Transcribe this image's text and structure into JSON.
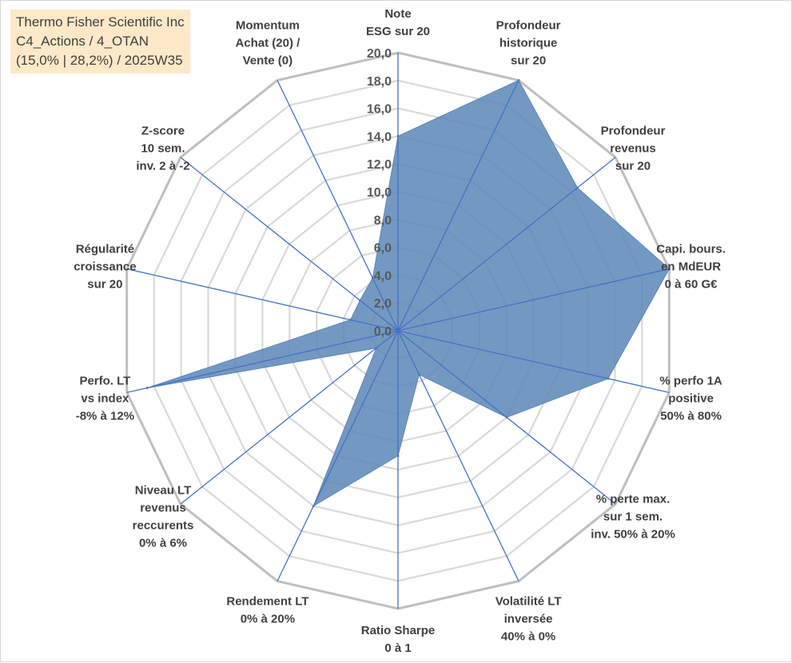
{
  "title_box": {
    "line1": "Thermo Fisher Scientific Inc",
    "line2": "C4_Actions / 4_OTAN",
    "line3": "(15,0% | 28,2%) / 2025W35"
  },
  "colors": {
    "fill": "#5b87b7",
    "axis_line": "#4472c4",
    "grid_outer": "#bfbfbf",
    "grid_inner": "#d9d9d9",
    "title_bg": "#fde9c8",
    "text": "#404040"
  },
  "chart_data": {
    "type": "radar",
    "ylim": [
      0,
      20
    ],
    "tick_step": 2,
    "tick_labels": [
      "0,0",
      "2,0",
      "4,0",
      "6,0",
      "8,0",
      "10,0",
      "12,0",
      "14,0",
      "16,0",
      "18,0",
      "20,0"
    ],
    "axes": [
      [
        "Note",
        "ESG sur 20"
      ],
      [
        "Profondeur",
        "historique",
        "sur 20"
      ],
      [
        "Profondeur",
        "revenus",
        "sur 20"
      ],
      [
        "Capi. bours.",
        "en MdEUR",
        "0 à 60 G€"
      ],
      [
        "% perfo 1A",
        "positive",
        "50% à 80%"
      ],
      [
        "% perte max.",
        "sur 1 sem.",
        "inv. 50% à 20%"
      ],
      [
        "Volatilité LT",
        "inversée",
        "40% à 0%"
      ],
      [
        "Ratio Sharpe",
        "0 à 1"
      ],
      [
        "Rendement LT",
        "0% à 20%"
      ],
      [
        "Niveau LT",
        "revenus",
        "reccurents",
        "0% à 6%"
      ],
      [
        "Perfo. LT",
        "vs index",
        "-8% à 12%"
      ],
      [
        "Régularité",
        "croissance",
        "sur 20"
      ],
      [
        "Z-score",
        "10 sem.",
        "inv. 2 à -2"
      ],
      [
        "Momentum",
        "Achat (20) /",
        "Vente (0)"
      ]
    ],
    "series": [
      {
        "values": [
          14,
          20,
          16.5,
          20,
          15.5,
          10,
          3.5,
          9,
          14,
          2,
          18.5,
          3.5,
          3.5,
          4.2
        ]
      }
    ]
  }
}
